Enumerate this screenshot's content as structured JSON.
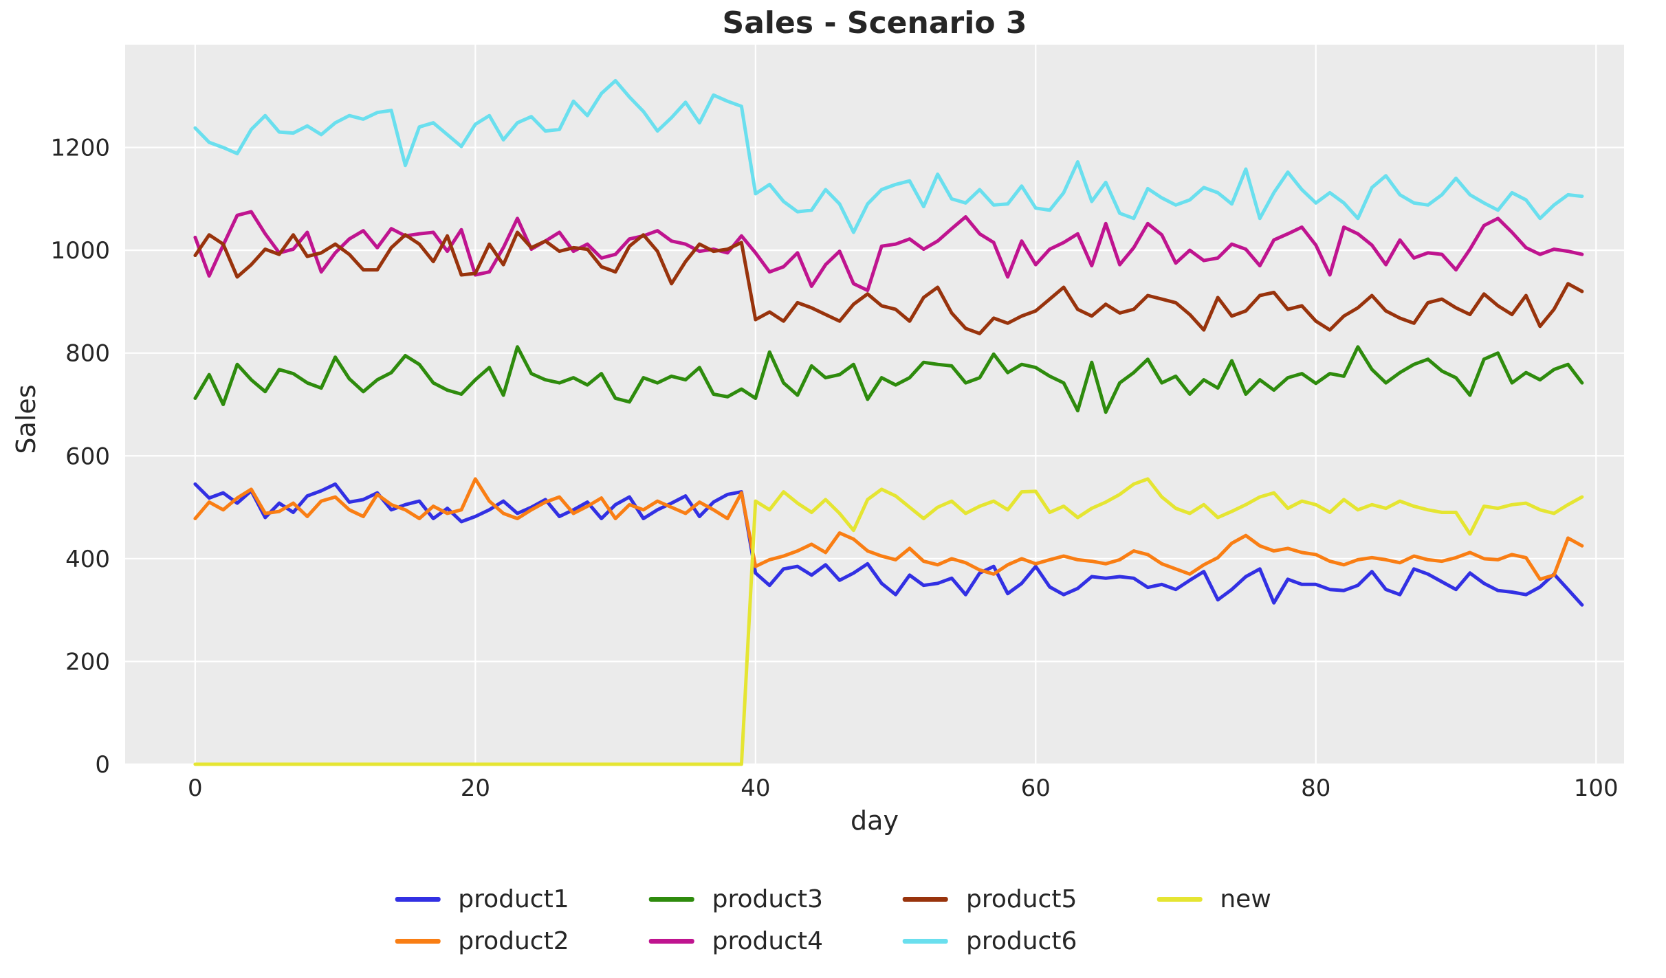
{
  "chart_data": {
    "type": "line",
    "title": "Sales - Scenario 3",
    "xlabel": "day",
    "ylabel": "Sales",
    "xlim": [
      -5,
      102
    ],
    "ylim": [
      0,
      1400
    ],
    "xticks": [
      0,
      20,
      40,
      60,
      80,
      100
    ],
    "yticks": [
      0,
      200,
      400,
      600,
      800,
      1000,
      1200
    ],
    "grid": true,
    "legend_position": "bottom",
    "plot_bg_color": "#ebebeb",
    "grid_color": "#ffffff",
    "text_color": "#262626",
    "x": [
      0,
      1,
      2,
      3,
      4,
      5,
      6,
      7,
      8,
      9,
      10,
      11,
      12,
      13,
      14,
      15,
      16,
      17,
      18,
      19,
      20,
      21,
      22,
      23,
      24,
      25,
      26,
      27,
      28,
      29,
      30,
      31,
      32,
      33,
      34,
      35,
      36,
      37,
      38,
      39,
      40,
      41,
      42,
      43,
      44,
      45,
      46,
      47,
      48,
      49,
      50,
      51,
      52,
      53,
      54,
      55,
      56,
      57,
      58,
      59,
      60,
      61,
      62,
      63,
      64,
      65,
      66,
      67,
      68,
      69,
      70,
      71,
      72,
      73,
      74,
      75,
      76,
      77,
      78,
      79,
      80,
      81,
      82,
      83,
      84,
      85,
      86,
      87,
      88,
      89,
      90,
      91,
      92,
      93,
      94,
      95,
      96,
      97,
      98,
      99
    ],
    "series": [
      {
        "name": "product1",
        "color": "#3230e3",
        "values": [
          545,
          518,
          528,
          508,
          532,
          480,
          508,
          490,
          522,
          532,
          545,
          510,
          515,
          528,
          495,
          505,
          512,
          478,
          498,
          472,
          482,
          495,
          512,
          488,
          500,
          515,
          482,
          495,
          510,
          478,
          505,
          520,
          478,
          495,
          508,
          522,
          482,
          510,
          525,
          530,
          372,
          348,
          380,
          385,
          368,
          388,
          358,
          372,
          390,
          352,
          330,
          368,
          348,
          352,
          362,
          330,
          372,
          385,
          332,
          352,
          385,
          345,
          330,
          342,
          365,
          362,
          365,
          362,
          344,
          350,
          340,
          358,
          375,
          320,
          340,
          365,
          380,
          314,
          360,
          350,
          350,
          340,
          338,
          348,
          375,
          340,
          330,
          380,
          370,
          355,
          340,
          372,
          352,
          338,
          335,
          330,
          345,
          370,
          340,
          310
        ]
      },
      {
        "name": "product2",
        "color": "#f97e14",
        "values": [
          478,
          510,
          495,
          518,
          535,
          488,
          492,
          508,
          482,
          512,
          520,
          495,
          482,
          525,
          505,
          495,
          478,
          502,
          488,
          495,
          555,
          512,
          488,
          478,
          495,
          510,
          520,
          488,
          502,
          518,
          478,
          505,
          495,
          512,
          500,
          488,
          510,
          495,
          478,
          528,
          385,
          398,
          405,
          415,
          428,
          412,
          450,
          438,
          415,
          405,
          398,
          420,
          395,
          388,
          400,
          392,
          378,
          370,
          388,
          400,
          390,
          398,
          405,
          398,
          395,
          390,
          398,
          415,
          408,
          390,
          380,
          370,
          388,
          402,
          430,
          445,
          425,
          415,
          420,
          412,
          408,
          395,
          388,
          398,
          402,
          398,
          392,
          405,
          398,
          395,
          402,
          412,
          400,
          398,
          408,
          402,
          360,
          368,
          440,
          425
        ]
      },
      {
        "name": "product3",
        "color": "#2e8b0d",
        "values": [
          712,
          758,
          700,
          778,
          748,
          725,
          768,
          760,
          742,
          732,
          792,
          750,
          725,
          748,
          762,
          795,
          778,
          742,
          728,
          720,
          748,
          772,
          718,
          812,
          760,
          748,
          742,
          752,
          738,
          760,
          712,
          705,
          752,
          742,
          755,
          748,
          772,
          720,
          715,
          730,
          712,
          802,
          742,
          718,
          775,
          752,
          758,
          778,
          710,
          752,
          738,
          752,
          782,
          778,
          775,
          742,
          752,
          798,
          762,
          778,
          772,
          755,
          742,
          688,
          782,
          685,
          742,
          762,
          788,
          742,
          755,
          720,
          748,
          732,
          785,
          720,
          748,
          728,
          752,
          760,
          741,
          760,
          755,
          812,
          768,
          742,
          762,
          778,
          788,
          765,
          752,
          718,
          788,
          800,
          742,
          762,
          748,
          768,
          778,
          742
        ]
      },
      {
        "name": "product4",
        "color": "#bf148f",
        "values": [
          1025,
          950,
          1010,
          1068,
          1075,
          1032,
          995,
          1002,
          1035,
          958,
          995,
          1022,
          1038,
          1005,
          1042,
          1028,
          1032,
          1035,
          998,
          1040,
          952,
          958,
          1005,
          1062,
          1002,
          1018,
          1035,
          998,
          1012,
          985,
          992,
          1022,
          1028,
          1038,
          1018,
          1012,
          998,
          1002,
          995,
          1028,
          995,
          958,
          968,
          995,
          930,
          972,
          998,
          935,
          922,
          1008,
          1012,
          1022,
          1002,
          1018,
          1042,
          1065,
          1032,
          1015,
          948,
          1018,
          972,
          1002,
          1015,
          1032,
          970,
          1052,
          972,
          1005,
          1052,
          1030,
          975,
          1000,
          980,
          985,
          1012,
          1002,
          970,
          1020,
          1032,
          1045,
          1010,
          952,
          1045,
          1032,
          1010,
          972,
          1020,
          985,
          995,
          992,
          962,
          1002,
          1048,
          1062,
          1035,
          1005,
          992,
          1002,
          998,
          992
        ]
      },
      {
        "name": "product5",
        "color": "#98330c",
        "values": [
          990,
          1030,
          1012,
          948,
          972,
          1002,
          992,
          1030,
          988,
          995,
          1012,
          992,
          962,
          962,
          1005,
          1030,
          1012,
          978,
          1028,
          952,
          955,
          1012,
          972,
          1035,
          1005,
          1018,
          998,
          1005,
          1002,
          968,
          958,
          1008,
          1030,
          998,
          935,
          978,
          1012,
          998,
          1002,
          1015,
          865,
          880,
          862,
          898,
          888,
          875,
          862,
          895,
          915,
          892,
          885,
          862,
          908,
          928,
          878,
          848,
          838,
          868,
          858,
          872,
          882,
          905,
          928,
          885,
          872,
          895,
          878,
          885,
          912,
          905,
          898,
          875,
          845,
          908,
          872,
          882,
          912,
          918,
          885,
          892,
          862,
          845,
          872,
          888,
          912,
          882,
          868,
          858,
          898,
          905,
          888,
          875,
          915,
          892,
          875,
          912,
          852,
          885,
          935,
          920
        ]
      },
      {
        "name": "product6",
        "color": "#6adfee",
        "values": [
          1238,
          1210,
          1200,
          1188,
          1235,
          1262,
          1230,
          1228,
          1242,
          1225,
          1248,
          1262,
          1255,
          1268,
          1272,
          1165,
          1240,
          1248,
          1225,
          1202,
          1245,
          1262,
          1215,
          1248,
          1260,
          1232,
          1235,
          1290,
          1262,
          1305,
          1330,
          1298,
          1270,
          1232,
          1258,
          1288,
          1248,
          1302,
          1290,
          1280,
          1110,
          1128,
          1095,
          1075,
          1078,
          1118,
          1090,
          1035,
          1090,
          1118,
          1128,
          1135,
          1085,
          1148,
          1100,
          1092,
          1118,
          1088,
          1090,
          1125,
          1082,
          1078,
          1112,
          1172,
          1095,
          1132,
          1072,
          1062,
          1120,
          1102,
          1088,
          1098,
          1122,
          1112,
          1090,
          1158,
          1062,
          1112,
          1152,
          1118,
          1092,
          1112,
          1092,
          1062,
          1122,
          1145,
          1108,
          1092,
          1088,
          1108,
          1140,
          1108,
          1092,
          1078,
          1112,
          1098,
          1062,
          1088,
          1108,
          1105
        ]
      },
      {
        "name": "new",
        "color": "#e5e532",
        "values": [
          0,
          0,
          0,
          0,
          0,
          0,
          0,
          0,
          0,
          0,
          0,
          0,
          0,
          0,
          0,
          0,
          0,
          0,
          0,
          0,
          0,
          0,
          0,
          0,
          0,
          0,
          0,
          0,
          0,
          0,
          0,
          0,
          0,
          0,
          0,
          0,
          0,
          0,
          0,
          0,
          512,
          495,
          530,
          508,
          490,
          515,
          488,
          455,
          515,
          535,
          522,
          500,
          478,
          500,
          512,
          488,
          502,
          512,
          495,
          530,
          531,
          490,
          502,
          480,
          498,
          510,
          525,
          545,
          555,
          520,
          498,
          488,
          505,
          480,
          492,
          505,
          520,
          528,
          498,
          512,
          505,
          490,
          515,
          495,
          505,
          498,
          512,
          502,
          495,
          490,
          490,
          448,
          502,
          498,
          505,
          508,
          495,
          488,
          505,
          520
        ]
      }
    ]
  }
}
